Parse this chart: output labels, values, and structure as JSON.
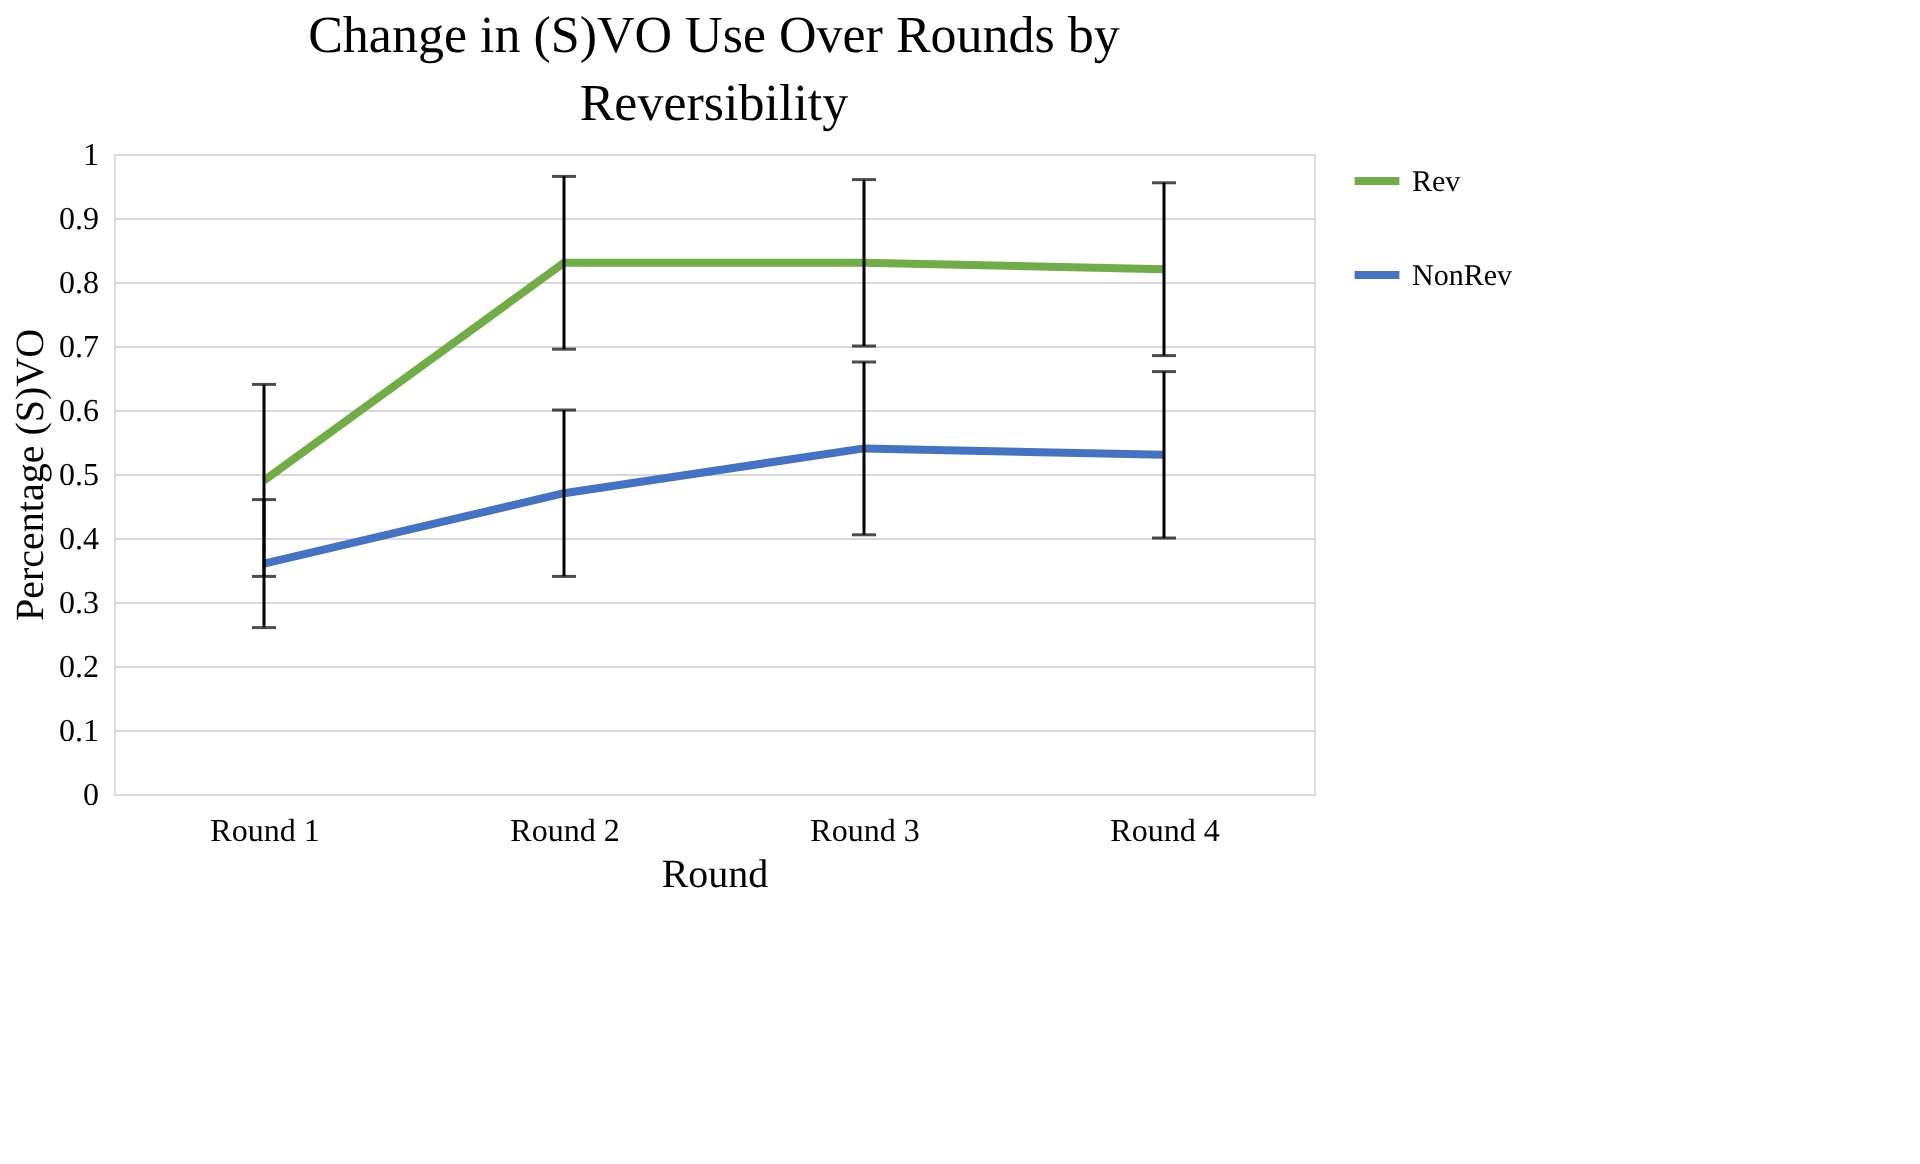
{
  "chart_data": {
    "type": "line",
    "title": "Change in (S)VO Use Over Rounds by Reversibility",
    "xlabel": "Round",
    "ylabel": "Percentage (S)VO",
    "categories": [
      "Round 1",
      "Round 2",
      "Round 3",
      "Round 4"
    ],
    "series": [
      {
        "name": "Rev",
        "color": "#70ad47",
        "values": [
          0.49,
          0.83,
          0.83,
          0.82
        ],
        "errors": [
          0.15,
          0.135,
          0.13,
          0.135
        ]
      },
      {
        "name": "NonRev",
        "color": "#4472c4",
        "values": [
          0.36,
          0.47,
          0.54,
          0.53
        ],
        "errors": [
          0.1,
          0.13,
          0.135,
          0.13
        ]
      }
    ],
    "ylim": [
      0,
      1
    ],
    "yticks": [
      0,
      0.1,
      0.2,
      0.3,
      0.4,
      0.5,
      0.6,
      0.7,
      0.8,
      0.9,
      1
    ],
    "grid": "y",
    "legend": "right",
    "marker": "none",
    "line_style": "solid"
  }
}
